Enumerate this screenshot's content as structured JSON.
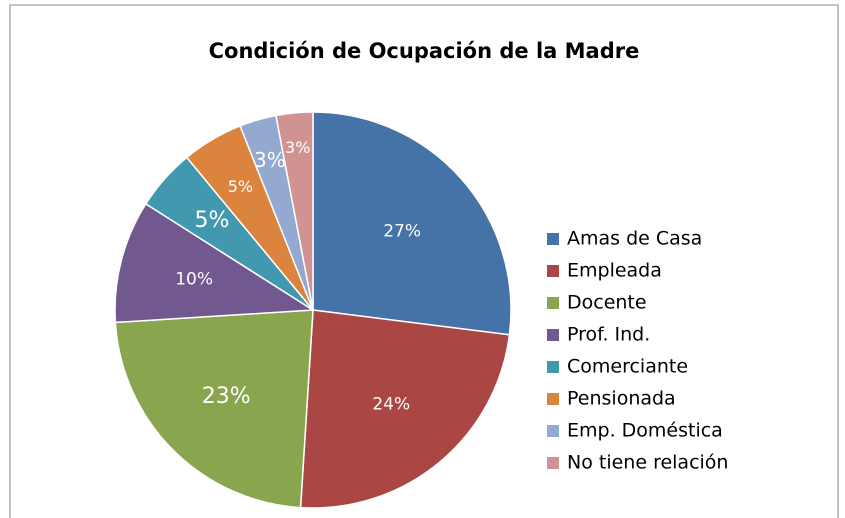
{
  "chart_data": {
    "type": "pie",
    "title": "Condición de Ocupación de la Madre",
    "categories": [
      "Amas de Casa",
      "Empleada",
      "Docente",
      "Prof. Ind.",
      "Comerciante",
      "Pensionada",
      "Emp. Doméstica",
      "No tiene relación"
    ],
    "values": [
      27,
      24,
      23,
      10,
      5,
      5,
      3,
      3
    ],
    "value_labels": [
      "27%",
      "24%",
      "23%",
      "10%",
      "5%",
      "5%",
      "3%",
      "3%"
    ],
    "colors": [
      "#4572A7",
      "#AA4643",
      "#89A54E",
      "#71588F",
      "#4198AF",
      "#DB843D",
      "#93A9CF",
      "#D19392"
    ],
    "legend": "right"
  }
}
